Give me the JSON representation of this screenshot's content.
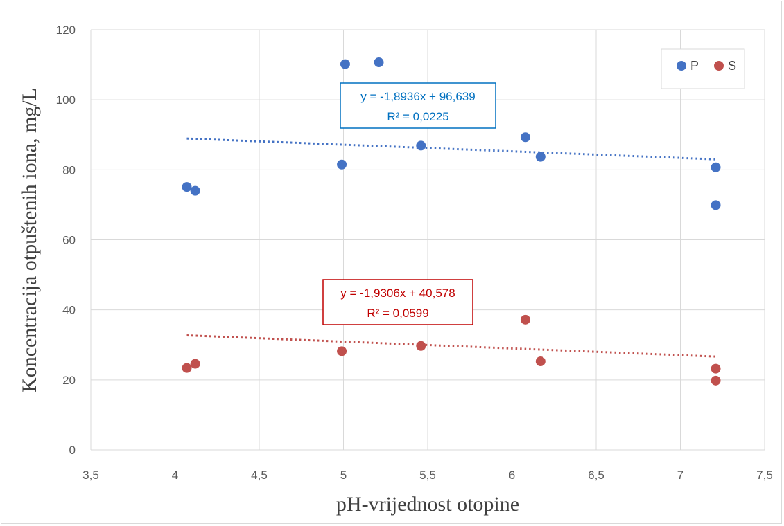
{
  "chart_data": {
    "type": "scatter",
    "title": "",
    "xlabel": "pH-vrijednost otopine",
    "ylabel": "Koncentracija otpuštenih iona, mg/L",
    "xlim": [
      3.5,
      7.5
    ],
    "ylim": [
      0,
      120
    ],
    "x_ticks": [
      "3,5",
      "4",
      "4,5",
      "5",
      "5,5",
      "6",
      "6,5",
      "7",
      "7,5"
    ],
    "y_ticks": [
      "0",
      "20",
      "40",
      "60",
      "80",
      "100",
      "120"
    ],
    "grid": true,
    "legend_position": "top-right",
    "series": [
      {
        "name": "P",
        "color": "#4472c4",
        "points": [
          {
            "x": 4.07,
            "y": 75.1
          },
          {
            "x": 4.12,
            "y": 74.0
          },
          {
            "x": 4.99,
            "y": 81.5
          },
          {
            "x": 5.01,
            "y": 110.2
          },
          {
            "x": 5.21,
            "y": 110.7
          },
          {
            "x": 5.46,
            "y": 86.9
          },
          {
            "x": 6.08,
            "y": 89.3
          },
          {
            "x": 6.17,
            "y": 83.7
          },
          {
            "x": 7.21,
            "y": 80.7
          },
          {
            "x": 7.21,
            "y": 69.9
          }
        ],
        "trendline": {
          "slope": -1.8936,
          "intercept": 96.639,
          "equation": "y = -1,8936x + 96,639",
          "r2": "R² = 0,0225",
          "label_color": "#0070c0"
        }
      },
      {
        "name": "S",
        "color": "#c0504d",
        "points": [
          {
            "x": 4.07,
            "y": 23.4
          },
          {
            "x": 4.12,
            "y": 24.6
          },
          {
            "x": 4.99,
            "y": 28.2
          },
          {
            "x": 5.46,
            "y": 29.7
          },
          {
            "x": 6.08,
            "y": 37.2
          },
          {
            "x": 6.17,
            "y": 25.3
          },
          {
            "x": 7.21,
            "y": 23.2
          },
          {
            "x": 7.21,
            "y": 19.8
          }
        ],
        "trendline": {
          "slope": -1.9306,
          "intercept": 40.578,
          "equation": "y = -1,9306x + 40,578",
          "r2": "R² = 0,0599",
          "label_color": "#c00000"
        }
      }
    ]
  }
}
